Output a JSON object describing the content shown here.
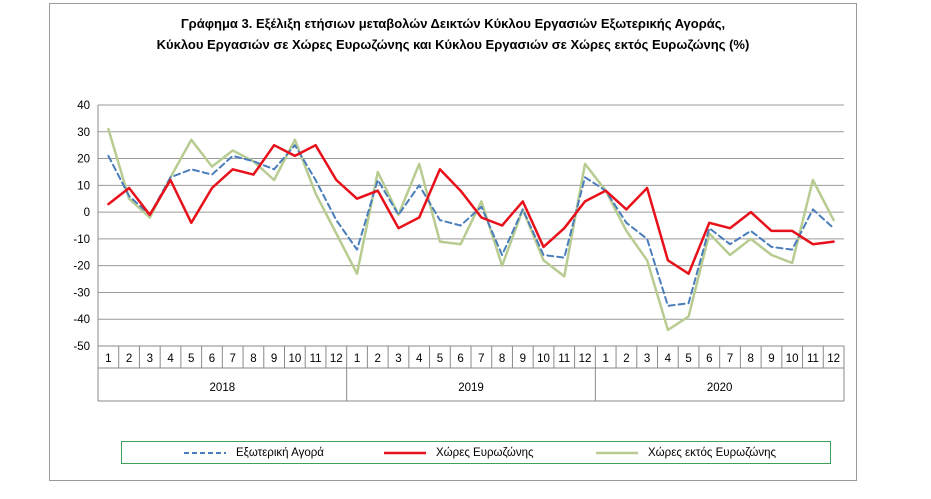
{
  "title": {
    "line1": "Γράφημα 3. Εξέλιξη  ετήσιων μεταβολών Δεικτών Κύκλου Εργασιών Εξωτερικής Αγοράς,",
    "line2": "Κύκλου Εργασιών σε Χώρες Ευρωζώνης και Κύκλου Εργασιών σε Χώρες εκτός Ευρωζώνης (%)"
  },
  "chart_data": {
    "type": "line",
    "title": "Γράφημα 3. Εξέλιξη  ετήσιων μεταβολών Δεικτών Κύκλου Εργασιών Εξωτερικής Αγοράς, Κύκλου Εργασιών σε Χώρες Ευρωζώνης και Κύκλου Εργασιών σε Χώρες εκτός Ευρωζώνης (%)",
    "ylim": [
      -50,
      40
    ],
    "yticks": [
      40,
      30,
      20,
      10,
      0,
      -10,
      -20,
      -30,
      -40,
      -50
    ],
    "month_labels": [
      "1",
      "2",
      "3",
      "4",
      "5",
      "6",
      "7",
      "8",
      "9",
      "10",
      "11",
      "12",
      "1",
      "2",
      "3",
      "4",
      "5",
      "6",
      "7",
      "8",
      "9",
      "10",
      "11",
      "12",
      "1",
      "2",
      "3",
      "4",
      "5",
      "6",
      "7",
      "8",
      "9",
      "10",
      "11",
      "12"
    ],
    "year_labels": [
      "2018",
      "2019",
      "2020"
    ],
    "grid": "horizontal",
    "legend_position": "bottom",
    "series": [
      {
        "name": "Εξωτερική Αγορά",
        "color": "#4a7ebb",
        "style": "dashed",
        "values": [
          21,
          6,
          -1,
          13,
          16,
          14,
          21,
          19,
          16,
          25,
          12,
          -3,
          -14,
          12,
          -1,
          10,
          -3,
          -5,
          2,
          -16,
          1,
          -16,
          -17,
          13,
          8,
          -4,
          -10,
          -35,
          -34,
          -6,
          -12,
          -7,
          -13,
          -14,
          1,
          -6
        ]
      },
      {
        "name": "Χώρες Ευρωζώνης",
        "color": "#e8101a",
        "style": "solid",
        "values": [
          3,
          9,
          -1,
          12,
          -4,
          9,
          16,
          14,
          25,
          21,
          25,
          12,
          5,
          8,
          -6,
          -2,
          16,
          8,
          -2,
          -5,
          4,
          -13,
          -6,
          4,
          8,
          1,
          9,
          -18,
          -23,
          -4,
          -6,
          0,
          -7,
          -7,
          -12,
          -11
        ]
      },
      {
        "name": "Χώρες εκτός Ευρωζώνης",
        "color": "#b8cc92",
        "style": "solid",
        "values": [
          31,
          5,
          -2,
          13,
          27,
          17,
          23,
          19,
          12,
          27,
          7,
          -8,
          -23,
          15,
          -1,
          18,
          -11,
          -12,
          4,
          -20,
          1,
          -18,
          -24,
          18,
          8,
          -7,
          -18,
          -44,
          -39,
          -8,
          -16,
          -10,
          -16,
          -19,
          12,
          -3
        ]
      }
    ]
  }
}
